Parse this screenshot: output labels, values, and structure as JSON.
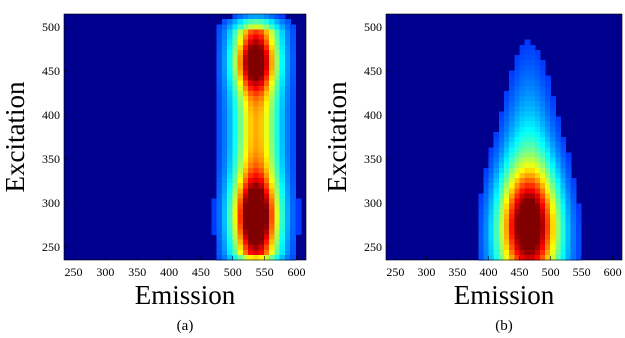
{
  "chart_data": [
    {
      "type": "heatmap",
      "panel_label": "(a)",
      "xlabel": "Emission",
      "ylabel": "Excitation",
      "xlim": [
        235,
        615
      ],
      "ylim": [
        235,
        515
      ],
      "xticks": [
        250,
        300,
        350,
        400,
        450,
        500,
        550,
        600
      ],
      "yticks": [
        250,
        300,
        350,
        400,
        450,
        500
      ],
      "colormap": "jet",
      "background": "#00008f",
      "peaks": [
        {
          "emission": 535,
          "excitation": 285,
          "intensity": 1.0
        },
        {
          "emission": 535,
          "excitation": 460,
          "intensity": 0.85
        }
      ],
      "emission_band": [
        470,
        600
      ]
    },
    {
      "type": "heatmap",
      "panel_label": "(b)",
      "xlabel": "Emission",
      "ylabel": "Excitation",
      "xlim": [
        235,
        615
      ],
      "ylim": [
        235,
        515
      ],
      "xticks": [
        250,
        300,
        350,
        400,
        450,
        500,
        550,
        600
      ],
      "yticks": [
        250,
        300,
        350,
        400,
        450,
        500
      ],
      "colormap": "jet",
      "background": "#00008f",
      "peaks": [
        {
          "emission": 465,
          "excitation": 275,
          "intensity": 1.0
        }
      ],
      "emission_band": [
        360,
        560
      ]
    }
  ]
}
